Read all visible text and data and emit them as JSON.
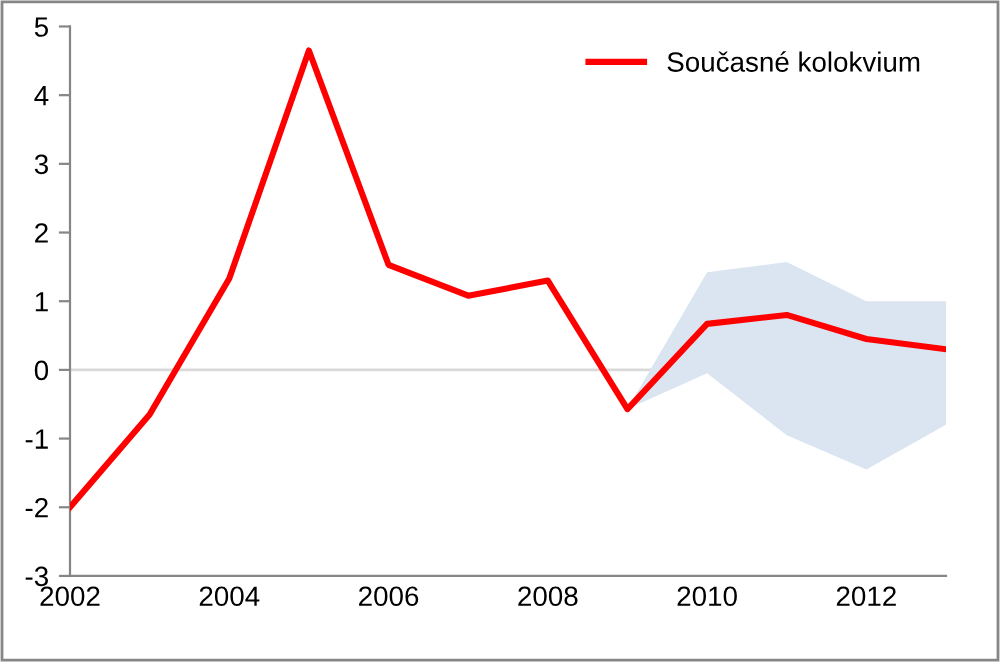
{
  "chart_data": {
    "type": "line",
    "x": [
      2002,
      2003,
      2004,
      2005,
      2006,
      2007,
      2008,
      2009,
      2010,
      2011,
      2012,
      2013
    ],
    "series": [
      {
        "name": "Současné kolokvium",
        "color": "#ff0000",
        "values": [
          -2.0,
          -0.65,
          1.33,
          4.65,
          1.53,
          1.08,
          1.3,
          -0.57,
          0.67,
          0.8,
          0.45,
          0.3
        ],
        "lower": [
          null,
          null,
          null,
          null,
          null,
          null,
          null,
          -0.57,
          -0.05,
          -0.95,
          -1.45,
          -0.8
        ],
        "upper": [
          null,
          null,
          null,
          null,
          null,
          null,
          null,
          -0.57,
          1.42,
          1.57,
          1.0,
          1.0
        ]
      }
    ],
    "xlim": [
      2002,
      2013
    ],
    "xticks": [
      2002,
      2004,
      2006,
      2008,
      2010,
      2012
    ],
    "ylim": [
      -3,
      5
    ],
    "yticks": [
      -3,
      -2,
      -1,
      0,
      1,
      2,
      3,
      4,
      5
    ],
    "ref_lines": [
      {
        "axis": "y",
        "value": 0,
        "color": "#d9d9d9"
      }
    ],
    "grid": false,
    "legend": "top right",
    "marker": "none",
    "line_style": "solid"
  }
}
